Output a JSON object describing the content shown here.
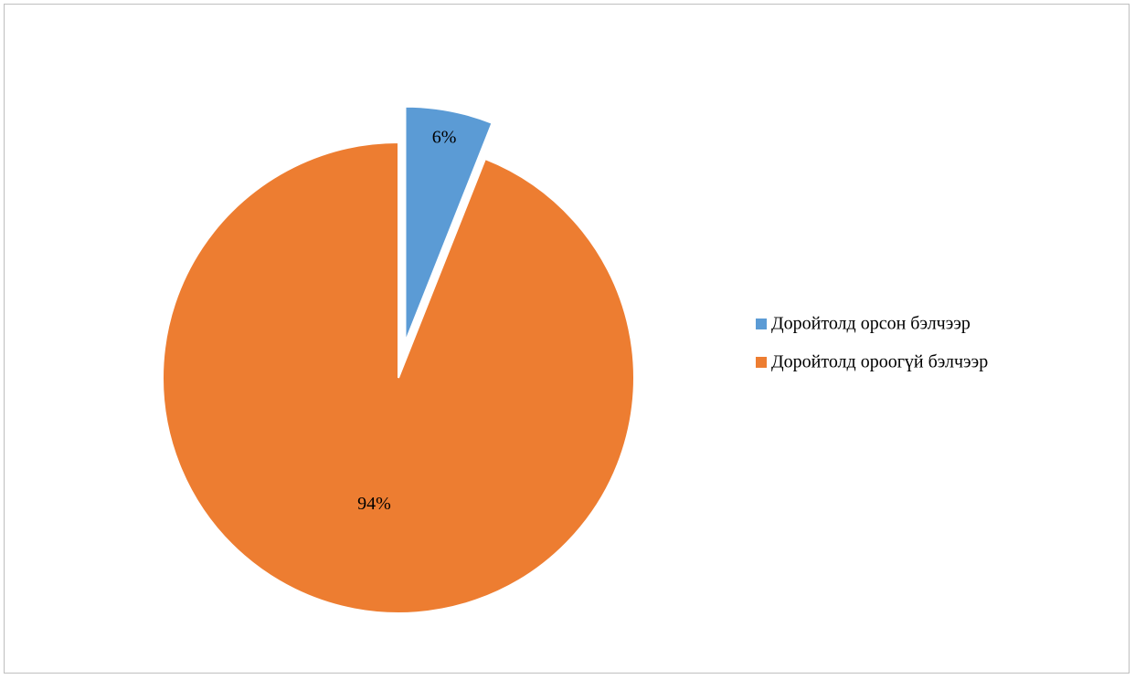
{
  "chart_data": {
    "type": "pie",
    "categories": [
      "Доройтолд орсон бэлчээр",
      "Доройтолд ороогүй бэлчээр"
    ],
    "values": [
      6,
      94
    ],
    "labels": [
      "6%",
      "94%"
    ],
    "colors": [
      "#5b9bd5",
      "#ed7d31"
    ],
    "exploded": [
      true,
      false
    ],
    "legend": "right"
  }
}
